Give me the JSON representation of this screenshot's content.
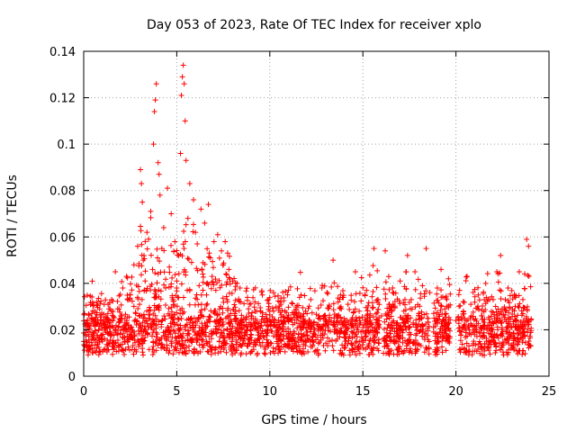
{
  "chart_data": {
    "type": "scatter",
    "title": "Day 053 of 2023, Rate Of TEC Index for receiver xplo",
    "xlabel": "GPS time / hours",
    "ylabel": "ROTI / TECUs",
    "xlim": [
      0,
      25
    ],
    "ylim": [
      0,
      0.14
    ],
    "xticks": [
      0,
      5,
      10,
      15,
      20,
      25
    ],
    "yticks": [
      0,
      0.02,
      0.04,
      0.06,
      0.08,
      0.1,
      0.12,
      0.14
    ],
    "xtick_labels": [
      "0",
      "5",
      "10",
      "15",
      "20",
      "25"
    ],
    "ytick_labels": [
      "0",
      "0.02",
      "0.04",
      "0.06",
      "0.08",
      "0.1",
      "0.12",
      "0.14"
    ],
    "grid": true,
    "marker": "+",
    "series": [
      {
        "color": "#ff0000",
        "points": [
          [
            0.0,
            0.015
          ],
          [
            0.1,
            0.018
          ],
          [
            0.2,
            0.022
          ],
          [
            0.3,
            0.013
          ],
          [
            0.4,
            0.025
          ],
          [
            0.5,
            0.017
          ],
          [
            0.6,
            0.028
          ],
          [
            0.7,
            0.012
          ],
          [
            0.8,
            0.02
          ],
          [
            0.9,
            0.024
          ],
          [
            1.0,
            0.016
          ],
          [
            1.1,
            0.031
          ],
          [
            1.2,
            0.019
          ],
          [
            1.3,
            0.027
          ],
          [
            1.4,
            0.014
          ],
          [
            1.5,
            0.033
          ],
          [
            1.6,
            0.021
          ],
          [
            1.7,
            0.045
          ],
          [
            1.8,
            0.018
          ],
          [
            1.9,
            0.029
          ],
          [
            2.0,
            0.026
          ],
          [
            2.1,
            0.038
          ],
          [
            2.2,
            0.015
          ],
          [
            2.3,
            0.043
          ],
          [
            2.4,
            0.022
          ],
          [
            2.5,
            0.035
          ],
          [
            2.6,
            0.019
          ],
          [
            2.7,
            0.048
          ],
          [
            2.8,
            0.027
          ],
          [
            2.9,
            0.056
          ],
          [
            3.0,
            0.031
          ],
          [
            3.05,
            0.089
          ],
          [
            3.1,
            0.083
          ],
          [
            3.15,
            0.075
          ],
          [
            3.2,
            0.05
          ],
          [
            3.3,
            0.041
          ],
          [
            3.4,
            0.062
          ],
          [
            3.5,
            0.028
          ],
          [
            3.6,
            0.071
          ],
          [
            3.7,
            0.046
          ],
          [
            3.75,
            0.1
          ],
          [
            3.8,
            0.114
          ],
          [
            3.85,
            0.119
          ],
          [
            3.9,
            0.126
          ],
          [
            4.0,
            0.092
          ],
          [
            4.05,
            0.087
          ],
          [
            4.1,
            0.078
          ],
          [
            4.2,
            0.055
          ],
          [
            4.3,
            0.064
          ],
          [
            4.4,
            0.038
          ],
          [
            4.5,
            0.081
          ],
          [
            4.6,
            0.047
          ],
          [
            4.7,
            0.07
          ],
          [
            4.8,
            0.033
          ],
          [
            4.9,
            0.058
          ],
          [
            5.0,
            0.041
          ],
          [
            5.1,
            0.052
          ],
          [
            5.2,
            0.096
          ],
          [
            5.25,
            0.121
          ],
          [
            5.3,
            0.129
          ],
          [
            5.35,
            0.134
          ],
          [
            5.4,
            0.126
          ],
          [
            5.45,
            0.11
          ],
          [
            5.5,
            0.093
          ],
          [
            5.6,
            0.068
          ],
          [
            5.7,
            0.083
          ],
          [
            5.8,
            0.049
          ],
          [
            5.9,
            0.076
          ],
          [
            6.0,
            0.062
          ],
          [
            6.1,
            0.057
          ],
          [
            6.2,
            0.039
          ],
          [
            6.3,
            0.072
          ],
          [
            6.4,
            0.044
          ],
          [
            6.5,
            0.066
          ],
          [
            6.6,
            0.035
          ],
          [
            6.7,
            0.074
          ],
          [
            6.8,
            0.051
          ],
          [
            6.9,
            0.043
          ],
          [
            7.0,
            0.058
          ],
          [
            7.1,
            0.037
          ],
          [
            7.2,
            0.061
          ],
          [
            7.3,
            0.029
          ],
          [
            7.4,
            0.054
          ],
          [
            7.5,
            0.048
          ],
          [
            7.6,
            0.058
          ],
          [
            7.7,
            0.033
          ],
          [
            7.8,
            0.046
          ],
          [
            7.9,
            0.027
          ],
          [
            8.0,
            0.041
          ],
          [
            8.2,
            0.025
          ],
          [
            8.4,
            0.038
          ],
          [
            8.6,
            0.021
          ],
          [
            8.8,
            0.034
          ],
          [
            9.0,
            0.026
          ],
          [
            9.2,
            0.032
          ],
          [
            9.4,
            0.019
          ],
          [
            9.6,
            0.035
          ],
          [
            9.8,
            0.022
          ],
          [
            10.0,
            0.028
          ],
          [
            10.2,
            0.036
          ],
          [
            10.4,
            0.018
          ],
          [
            10.6,
            0.031
          ],
          [
            10.8,
            0.024
          ],
          [
            11.0,
            0.037
          ],
          [
            11.2,
            0.016
          ],
          [
            11.4,
            0.029
          ],
          [
            11.6,
            0.034
          ],
          [
            11.8,
            0.021
          ],
          [
            12.0,
            0.027
          ],
          [
            12.2,
            0.033
          ],
          [
            12.4,
            0.018
          ],
          [
            12.6,
            0.025
          ],
          [
            12.8,
            0.038
          ],
          [
            13.0,
            0.022
          ],
          [
            13.2,
            0.03
          ],
          [
            13.4,
            0.05
          ],
          [
            13.6,
            0.026
          ],
          [
            13.8,
            0.035
          ],
          [
            14.0,
            0.019
          ],
          [
            14.2,
            0.031
          ],
          [
            14.4,
            0.024
          ],
          [
            14.6,
            0.045
          ],
          [
            14.8,
            0.028
          ],
          [
            15.0,
            0.021
          ],
          [
            15.2,
            0.037
          ],
          [
            15.4,
            0.016
          ],
          [
            15.6,
            0.055
          ],
          [
            15.8,
            0.033
          ],
          [
            16.0,
            0.026
          ],
          [
            16.2,
            0.054
          ],
          [
            16.4,
            0.031
          ],
          [
            16.6,
            0.038
          ],
          [
            16.8,
            0.022
          ],
          [
            17.0,
            0.041
          ],
          [
            17.2,
            0.028
          ],
          [
            17.4,
            0.052
          ],
          [
            17.6,
            0.033
          ],
          [
            17.8,
            0.045
          ],
          [
            18.0,
            0.027
          ],
          [
            18.2,
            0.039
          ],
          [
            18.4,
            0.055
          ],
          [
            18.6,
            0.036
          ],
          [
            18.8,
            0.021
          ],
          [
            19.0,
            0.038
          ],
          [
            19.2,
            0.046
          ],
          [
            19.4,
            0.029
          ],
          [
            19.6,
            0.042
          ],
          [
            20.0,
            0.024
          ],
          [
            20.2,
            0.037
          ],
          [
            20.4,
            0.028
          ],
          [
            20.6,
            0.043
          ],
          [
            20.8,
            0.031
          ],
          [
            21.0,
            0.019
          ],
          [
            21.2,
            0.035
          ],
          [
            21.4,
            0.026
          ],
          [
            21.6,
            0.04
          ],
          [
            21.8,
            0.022
          ],
          [
            22.0,
            0.033
          ],
          [
            22.2,
            0.045
          ],
          [
            22.4,
            0.052
          ],
          [
            22.6,
            0.029
          ],
          [
            22.8,
            0.038
          ],
          [
            23.0,
            0.021
          ],
          [
            23.2,
            0.034
          ],
          [
            23.4,
            0.045
          ],
          [
            23.6,
            0.027
          ],
          [
            23.8,
            0.059
          ],
          [
            23.9,
            0.056
          ],
          [
            24.0,
            0.013
          ]
        ]
      }
    ]
  }
}
